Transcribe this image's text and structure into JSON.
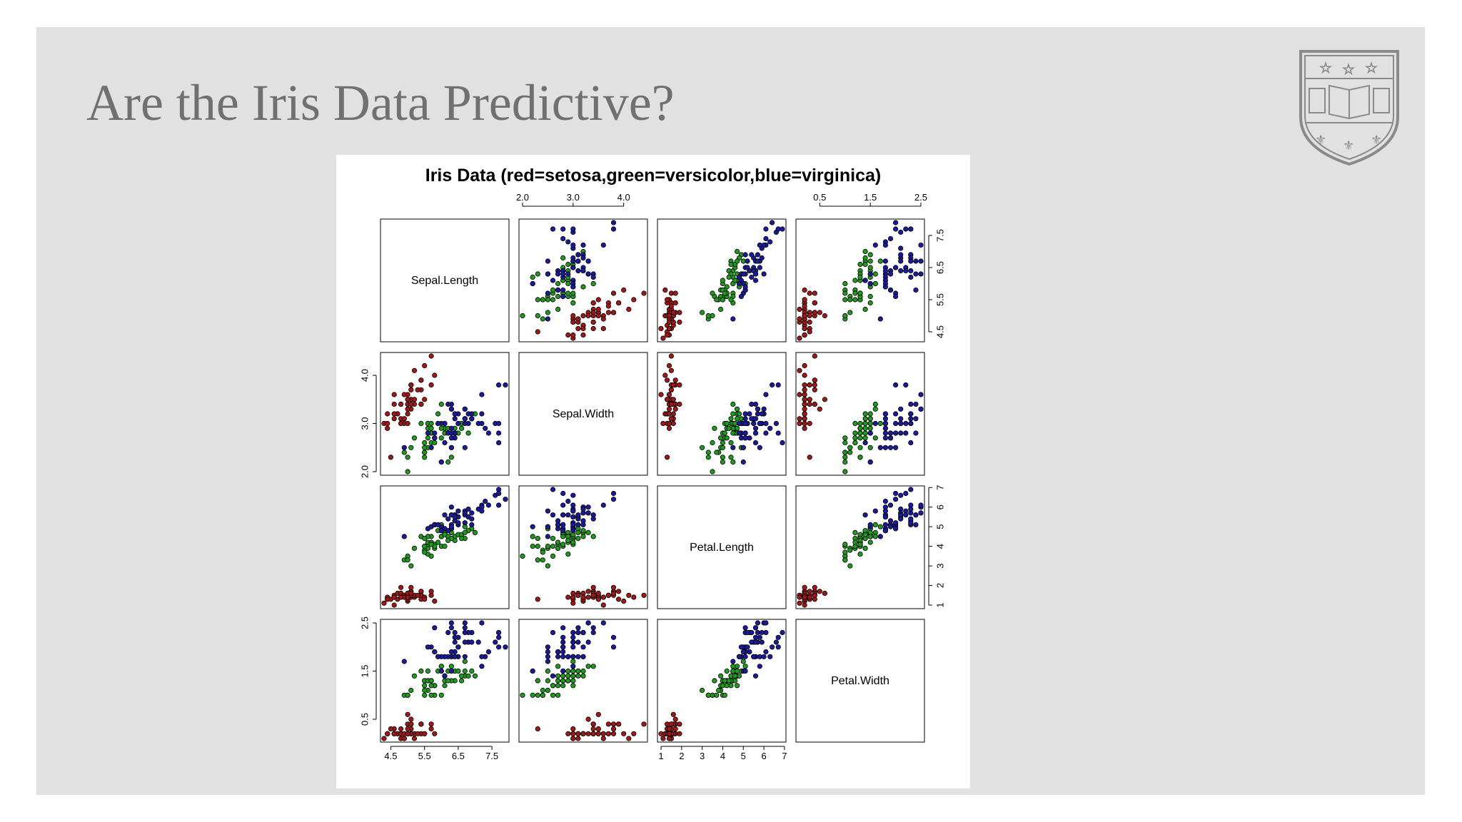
{
  "slide": {
    "title": "Are the Iris Data Predictive?",
    "background": "#e1e1e1",
    "title_color": "#707070",
    "logo_icon": "university-shield-logo"
  },
  "chart_data": {
    "type": "scatter",
    "subtype": "scatterplot-matrix",
    "title": "Iris Data (red=setosa,green=versicolor,blue=virginica)",
    "variables": [
      "Sepal.Length",
      "Sepal.Width",
      "Petal.Length",
      "Petal.Width"
    ],
    "ranges": [
      [
        4.3,
        7.9
      ],
      [
        2.0,
        4.4
      ],
      [
        1.0,
        6.9
      ],
      [
        0.1,
        2.5
      ]
    ],
    "ticks": [
      [
        "4.5",
        "5.5",
        "6.5",
        "7.5"
      ],
      [
        "2.0",
        "3.0",
        "4.0"
      ],
      [
        "1",
        "2",
        "3",
        "4",
        "5",
        "6",
        "7"
      ],
      [
        "0.5",
        "1.5",
        "2.5"
      ]
    ],
    "axis_placement": {
      "top": [
        1,
        3
      ],
      "bottom": [
        0,
        2
      ],
      "left": [
        1,
        3
      ],
      "right": [
        0,
        2
      ]
    },
    "species_colors": {
      "setosa": "#a01818",
      "versicolor": "#1f9a1f",
      "virginica": "#1a1a9a"
    },
    "series": [
      {
        "name": "setosa",
        "color": "#a01818",
        "values": [
          [
            5.1,
            3.5,
            1.4,
            0.2
          ],
          [
            4.9,
            3.0,
            1.4,
            0.2
          ],
          [
            4.7,
            3.2,
            1.3,
            0.2
          ],
          [
            4.6,
            3.1,
            1.5,
            0.2
          ],
          [
            5.0,
            3.6,
            1.4,
            0.2
          ],
          [
            5.4,
            3.9,
            1.7,
            0.4
          ],
          [
            4.6,
            3.4,
            1.4,
            0.3
          ],
          [
            5.0,
            3.4,
            1.5,
            0.2
          ],
          [
            4.4,
            2.9,
            1.4,
            0.2
          ],
          [
            4.9,
            3.1,
            1.5,
            0.1
          ],
          [
            5.4,
            3.7,
            1.5,
            0.2
          ],
          [
            4.8,
            3.4,
            1.6,
            0.2
          ],
          [
            4.8,
            3.0,
            1.4,
            0.1
          ],
          [
            4.3,
            3.0,
            1.1,
            0.1
          ],
          [
            5.8,
            4.0,
            1.2,
            0.2
          ],
          [
            5.7,
            4.4,
            1.5,
            0.4
          ],
          [
            5.4,
            3.9,
            1.3,
            0.4
          ],
          [
            5.1,
            3.5,
            1.4,
            0.3
          ],
          [
            5.7,
            3.8,
            1.7,
            0.3
          ],
          [
            5.1,
            3.8,
            1.5,
            0.3
          ],
          [
            5.4,
            3.4,
            1.7,
            0.2
          ],
          [
            5.1,
            3.7,
            1.5,
            0.4
          ],
          [
            4.6,
            3.6,
            1.0,
            0.2
          ],
          [
            5.1,
            3.3,
            1.7,
            0.5
          ],
          [
            4.8,
            3.4,
            1.9,
            0.2
          ],
          [
            5.0,
            3.0,
            1.6,
            0.2
          ],
          [
            5.0,
            3.4,
            1.6,
            0.4
          ],
          [
            5.2,
            3.5,
            1.5,
            0.2
          ],
          [
            5.2,
            3.4,
            1.4,
            0.2
          ],
          [
            4.7,
            3.2,
            1.6,
            0.2
          ],
          [
            4.8,
            3.1,
            1.6,
            0.2
          ],
          [
            5.4,
            3.4,
            1.5,
            0.4
          ],
          [
            5.2,
            4.1,
            1.5,
            0.1
          ],
          [
            5.5,
            4.2,
            1.4,
            0.2
          ],
          [
            4.9,
            3.1,
            1.5,
            0.2
          ],
          [
            5.0,
            3.2,
            1.2,
            0.2
          ],
          [
            5.5,
            3.5,
            1.3,
            0.2
          ],
          [
            4.9,
            3.6,
            1.4,
            0.1
          ],
          [
            4.4,
            3.0,
            1.3,
            0.2
          ],
          [
            5.1,
            3.4,
            1.5,
            0.2
          ],
          [
            5.0,
            3.5,
            1.3,
            0.3
          ],
          [
            4.5,
            2.3,
            1.3,
            0.3
          ],
          [
            4.4,
            3.2,
            1.3,
            0.2
          ],
          [
            5.0,
            3.5,
            1.6,
            0.6
          ],
          [
            5.1,
            3.8,
            1.9,
            0.4
          ],
          [
            4.8,
            3.0,
            1.4,
            0.3
          ],
          [
            5.1,
            3.8,
            1.6,
            0.2
          ],
          [
            4.6,
            3.2,
            1.4,
            0.2
          ],
          [
            5.3,
            3.7,
            1.5,
            0.2
          ],
          [
            5.0,
            3.3,
            1.4,
            0.2
          ]
        ]
      },
      {
        "name": "versicolor",
        "color": "#1f9a1f",
        "values": [
          [
            7.0,
            3.2,
            4.7,
            1.4
          ],
          [
            6.4,
            3.2,
            4.5,
            1.5
          ],
          [
            6.9,
            3.1,
            4.9,
            1.5
          ],
          [
            5.5,
            2.3,
            4.0,
            1.3
          ],
          [
            6.5,
            2.8,
            4.6,
            1.5
          ],
          [
            5.7,
            2.8,
            4.5,
            1.3
          ],
          [
            6.3,
            3.3,
            4.7,
            1.6
          ],
          [
            4.9,
            2.4,
            3.3,
            1.0
          ],
          [
            6.6,
            2.9,
            4.6,
            1.3
          ],
          [
            5.2,
            2.7,
            3.9,
            1.4
          ],
          [
            5.0,
            2.0,
            3.5,
            1.0
          ],
          [
            5.9,
            3.0,
            4.2,
            1.5
          ],
          [
            6.0,
            2.2,
            4.0,
            1.0
          ],
          [
            6.1,
            2.9,
            4.7,
            1.4
          ],
          [
            5.6,
            2.9,
            3.6,
            1.3
          ],
          [
            6.7,
            3.1,
            4.4,
            1.4
          ],
          [
            5.6,
            3.0,
            4.5,
            1.5
          ],
          [
            5.8,
            2.7,
            4.1,
            1.0
          ],
          [
            6.2,
            2.2,
            4.5,
            1.5
          ],
          [
            5.6,
            2.5,
            3.9,
            1.1
          ],
          [
            5.9,
            3.2,
            4.8,
            1.8
          ],
          [
            6.1,
            2.8,
            4.0,
            1.3
          ],
          [
            6.3,
            2.5,
            4.9,
            1.5
          ],
          [
            6.1,
            2.8,
            4.7,
            1.2
          ],
          [
            6.4,
            2.9,
            4.3,
            1.3
          ],
          [
            6.6,
            3.0,
            4.4,
            1.4
          ],
          [
            6.8,
            2.8,
            4.8,
            1.4
          ],
          [
            6.7,
            3.0,
            5.0,
            1.7
          ],
          [
            6.0,
            2.9,
            4.5,
            1.5
          ],
          [
            5.7,
            2.6,
            3.5,
            1.0
          ],
          [
            5.5,
            2.4,
            3.8,
            1.1
          ],
          [
            5.5,
            2.4,
            3.7,
            1.0
          ],
          [
            5.8,
            2.7,
            3.9,
            1.2
          ],
          [
            6.0,
            2.7,
            5.1,
            1.6
          ],
          [
            5.4,
            3.0,
            4.5,
            1.5
          ],
          [
            6.0,
            3.4,
            4.5,
            1.6
          ],
          [
            6.7,
            3.1,
            4.7,
            1.5
          ],
          [
            6.3,
            2.3,
            4.4,
            1.3
          ],
          [
            5.6,
            3.0,
            4.1,
            1.3
          ],
          [
            5.5,
            2.5,
            4.0,
            1.3
          ],
          [
            5.5,
            2.6,
            4.4,
            1.2
          ],
          [
            6.1,
            3.0,
            4.6,
            1.4
          ],
          [
            5.8,
            2.6,
            4.0,
            1.2
          ],
          [
            5.0,
            2.3,
            3.3,
            1.0
          ],
          [
            5.6,
            2.7,
            4.2,
            1.3
          ],
          [
            5.7,
            3.0,
            4.2,
            1.2
          ],
          [
            5.7,
            2.9,
            4.2,
            1.3
          ],
          [
            6.2,
            2.9,
            4.3,
            1.3
          ],
          [
            5.1,
            2.5,
            3.0,
            1.1
          ],
          [
            5.7,
            2.8,
            4.1,
            1.3
          ]
        ]
      },
      {
        "name": "virginica",
        "color": "#1a1a9a",
        "values": [
          [
            6.3,
            3.3,
            6.0,
            2.5
          ],
          [
            5.8,
            2.7,
            5.1,
            1.9
          ],
          [
            7.1,
            3.0,
            5.9,
            2.1
          ],
          [
            6.3,
            2.9,
            5.6,
            1.8
          ],
          [
            6.5,
            3.0,
            5.8,
            2.2
          ],
          [
            7.6,
            3.0,
            6.6,
            2.1
          ],
          [
            4.9,
            2.5,
            4.5,
            1.7
          ],
          [
            7.3,
            2.9,
            6.3,
            1.8
          ],
          [
            6.7,
            2.5,
            5.8,
            1.8
          ],
          [
            7.2,
            3.6,
            6.1,
            2.5
          ],
          [
            6.5,
            3.2,
            5.1,
            2.0
          ],
          [
            6.4,
            2.7,
            5.3,
            1.9
          ],
          [
            6.8,
            3.0,
            5.5,
            2.1
          ],
          [
            5.7,
            2.5,
            5.0,
            2.0
          ],
          [
            5.8,
            2.8,
            5.1,
            2.4
          ],
          [
            6.4,
            3.2,
            5.3,
            2.3
          ],
          [
            6.5,
            3.0,
            5.5,
            1.8
          ],
          [
            7.7,
            3.8,
            6.7,
            2.2
          ],
          [
            7.7,
            2.6,
            6.9,
            2.3
          ],
          [
            6.0,
            2.2,
            5.0,
            1.5
          ],
          [
            6.9,
            3.2,
            5.7,
            2.3
          ],
          [
            5.6,
            2.8,
            4.9,
            2.0
          ],
          [
            7.7,
            2.8,
            6.7,
            2.0
          ],
          [
            6.3,
            2.7,
            4.9,
            1.8
          ],
          [
            6.7,
            3.3,
            5.7,
            2.1
          ],
          [
            7.2,
            3.2,
            6.0,
            1.8
          ],
          [
            6.2,
            2.8,
            4.8,
            1.8
          ],
          [
            6.1,
            3.0,
            4.9,
            1.8
          ],
          [
            6.4,
            2.8,
            5.6,
            2.1
          ],
          [
            7.2,
            3.0,
            5.8,
            1.6
          ],
          [
            7.4,
            2.8,
            6.1,
            1.9
          ],
          [
            7.9,
            3.8,
            6.4,
            2.0
          ],
          [
            6.4,
            2.8,
            5.6,
            2.2
          ],
          [
            6.3,
            2.8,
            5.1,
            1.5
          ],
          [
            6.1,
            2.6,
            5.6,
            1.4
          ],
          [
            7.7,
            3.0,
            6.1,
            2.3
          ],
          [
            6.3,
            3.4,
            5.6,
            2.4
          ],
          [
            6.4,
            3.1,
            5.5,
            1.8
          ],
          [
            6.0,
            3.0,
            4.8,
            1.8
          ],
          [
            6.9,
            3.1,
            5.4,
            2.1
          ],
          [
            6.7,
            3.1,
            5.6,
            2.4
          ],
          [
            6.9,
            3.1,
            5.1,
            2.3
          ],
          [
            5.8,
            2.7,
            5.1,
            1.9
          ],
          [
            6.8,
            3.2,
            5.9,
            2.3
          ],
          [
            6.7,
            3.3,
            5.7,
            2.5
          ],
          [
            6.7,
            3.0,
            5.2,
            2.3
          ],
          [
            6.3,
            2.5,
            5.0,
            1.9
          ],
          [
            6.5,
            3.0,
            5.2,
            2.0
          ],
          [
            6.2,
            3.4,
            5.4,
            2.3
          ],
          [
            5.9,
            3.0,
            5.1,
            1.8
          ]
        ]
      }
    ],
    "grid": false,
    "legend": "none"
  }
}
